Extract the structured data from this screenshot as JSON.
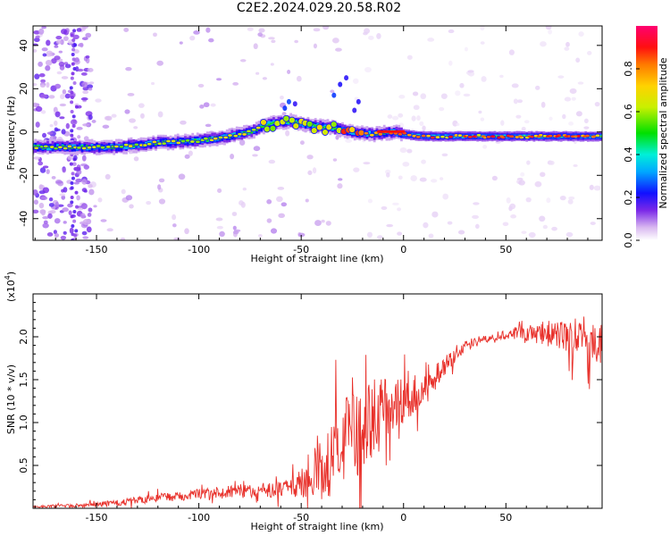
{
  "title": "C2E2.2024.029.20.58.R02",
  "chart_data": [
    {
      "type": "heatmap",
      "xlabel": "Height of straight line (km)",
      "ylabel": "Frequency (Hz)",
      "xlim": [
        -181,
        97
      ],
      "ylim": [
        -50,
        49
      ],
      "xticks": [
        -150,
        -100,
        -50,
        0,
        50
      ],
      "yticks": [
        -40,
        -20,
        0,
        20,
        40
      ],
      "ridge": {
        "x": [
          -181,
          -160,
          -140,
          -120,
          -100,
          -85,
          -75,
          -65,
          -55,
          -45,
          -35,
          -30,
          -25,
          -15,
          -5,
          0,
          10,
          30,
          60,
          95
        ],
        "frequency": [
          -7,
          -7,
          -7,
          -5,
          -4,
          -2,
          0,
          4,
          5,
          3,
          2,
          1,
          0,
          -1,
          0,
          -1,
          -2,
          -2,
          -2,
          -2
        ]
      },
      "colorbar": {
        "label": "Normalized spectral amplitude",
        "ticks": [
          "0.0",
          "0.2",
          "0.4",
          "0.6",
          "0.8"
        ],
        "range": [
          0,
          1
        ]
      }
    },
    {
      "type": "line",
      "xlabel": "Height of straight line (km)",
      "ylabel": "SNR (10 * v/v)",
      "yscale_label": "(x10",
      "yscale_exp": "4",
      "yscale_close": ")",
      "xlim": [
        -181,
        97
      ],
      "ylim": [
        0,
        2.5
      ],
      "xticks": [
        -150,
        -100,
        -50,
        0,
        50
      ],
      "yticks": [
        "0.5",
        "1.0",
        "1.5",
        "2.0"
      ],
      "color": "#e8302a",
      "trend": {
        "x": [
          -181,
          -160,
          -140,
          -120,
          -100,
          -80,
          -60,
          -50,
          -40,
          -30,
          -20,
          -10,
          0,
          10,
          20,
          30,
          40,
          50,
          60,
          70,
          80,
          90,
          97
        ],
        "y": [
          0.02,
          0.03,
          0.06,
          0.12,
          0.17,
          0.2,
          0.22,
          0.28,
          0.45,
          0.75,
          0.95,
          1.15,
          1.25,
          1.35,
          1.65,
          1.9,
          1.98,
          2.02,
          2.04,
          2.04,
          2.0,
          1.95,
          1.92
        ]
      },
      "noise": {
        "x": [
          -181,
          -120,
          -80,
          -55,
          -45,
          -35,
          -25,
          -15,
          -5,
          10,
          25,
          45,
          65,
          80,
          97
        ],
        "amplitude": [
          0.01,
          0.05,
          0.08,
          0.1,
          0.25,
          0.45,
          0.55,
          0.45,
          0.3,
          0.2,
          0.08,
          0.04,
          0.12,
          0.2,
          0.25
        ]
      }
    }
  ]
}
